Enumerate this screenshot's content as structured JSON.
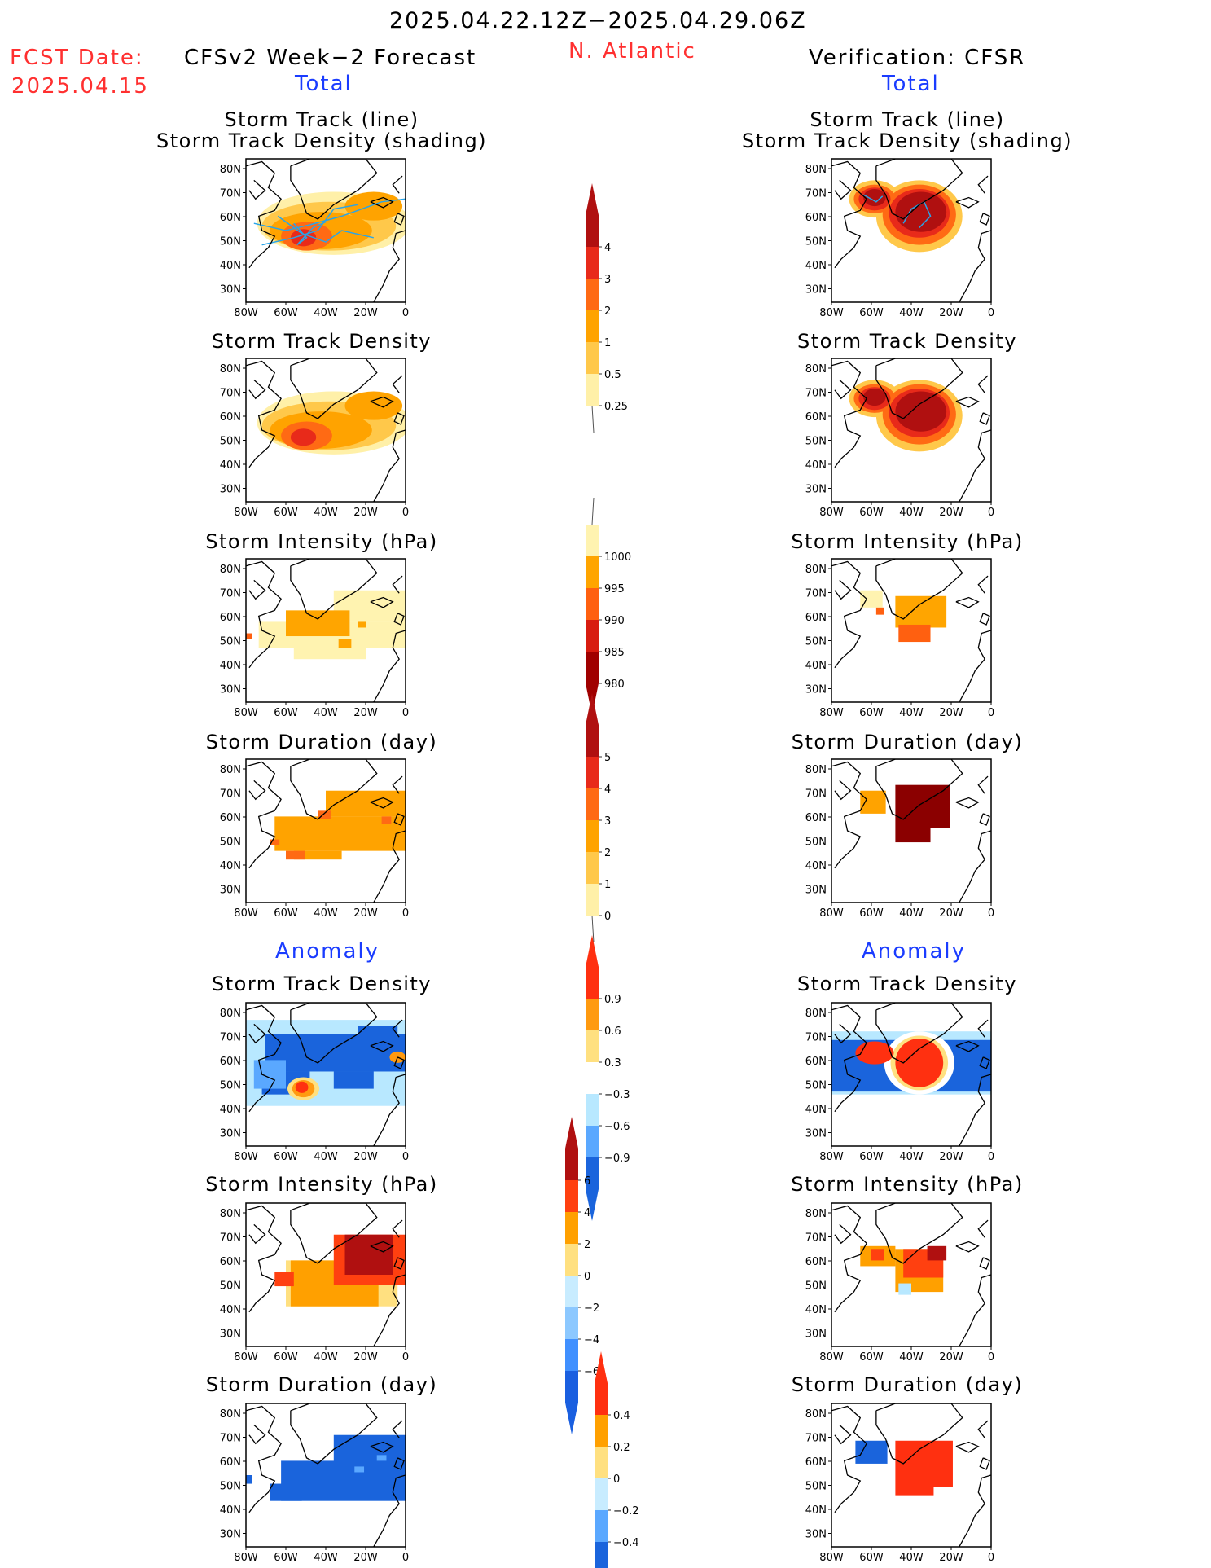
{
  "header": {
    "date_range": "2025.04.22.12Z−2025.04.29.06Z",
    "fcst_label": "FCST Date:",
    "fcst_date": "2025.04.15",
    "left_model": "CFSv2 Week−2 Forecast",
    "region": "N. Atlantic",
    "right_model": "Verification: CFSR",
    "total_label": "Total",
    "anomaly_label": "Anomaly"
  },
  "panel_titles": {
    "track_line": "Storm Track (line)",
    "track_shading": "Storm Track Density (shading)",
    "density": "Storm Track Density",
    "intensity": "Storm Intensity (hPa)",
    "duration": "Storm Duration (day)"
  },
  "axes": {
    "x_ticks": [
      "80W",
      "60W",
      "40W",
      "20W",
      "0"
    ],
    "y_ticks": [
      "80N",
      "70N",
      "60N",
      "50N",
      "40N",
      "30N"
    ]
  },
  "colorbars": {
    "density_total": {
      "labels": [
        "4",
        "3",
        "2",
        "1",
        "0.5",
        "0.25"
      ],
      "colors": [
        "#b01010",
        "#e82a1a",
        "#ff6a14",
        "#ffa300",
        "#ffc84a",
        "#fff0a8"
      ]
    },
    "intensity_total": {
      "labels": [
        "1000",
        "995",
        "990",
        "985",
        "980"
      ],
      "colors": [
        "#fff3b0",
        "#ffa500",
        "#ff6010",
        "#d81c10",
        "#a00000"
      ]
    },
    "duration_total": {
      "labels": [
        "5",
        "4",
        "3",
        "2",
        "1",
        "0"
      ],
      "colors": [
        "#b01010",
        "#e82a1a",
        "#ff6a14",
        "#ffa300",
        "#ffc84a",
        "#fff0a8"
      ]
    },
    "density_anom": {
      "labels": [
        "0.9",
        "0.6",
        "0.3",
        "−0.3",
        "−0.6",
        "−0.9"
      ],
      "colors": [
        "#ff3010",
        "#ff9a10",
        "#ffe080",
        "#ffffff",
        "#b8e8ff",
        "#5aa8ff",
        "#1a64dc"
      ]
    },
    "intensity_anom": {
      "labels": [
        "6",
        "4",
        "2",
        "0",
        "−2",
        "−4",
        "−6"
      ],
      "colors": [
        "#b01010",
        "#ff4010",
        "#ffa000",
        "#ffe080",
        "#c8ecff",
        "#8cc8ff",
        "#4090ff",
        "#1a5fe0"
      ]
    },
    "duration_anom": {
      "labels": [
        "0.4",
        "0.2",
        "0",
        "−0.2",
        "−0.4"
      ],
      "colors": [
        "#ff3010",
        "#ffa000",
        "#ffe080",
        "#c8ecff",
        "#5aa8ff",
        "#1a64dc"
      ]
    }
  }
}
